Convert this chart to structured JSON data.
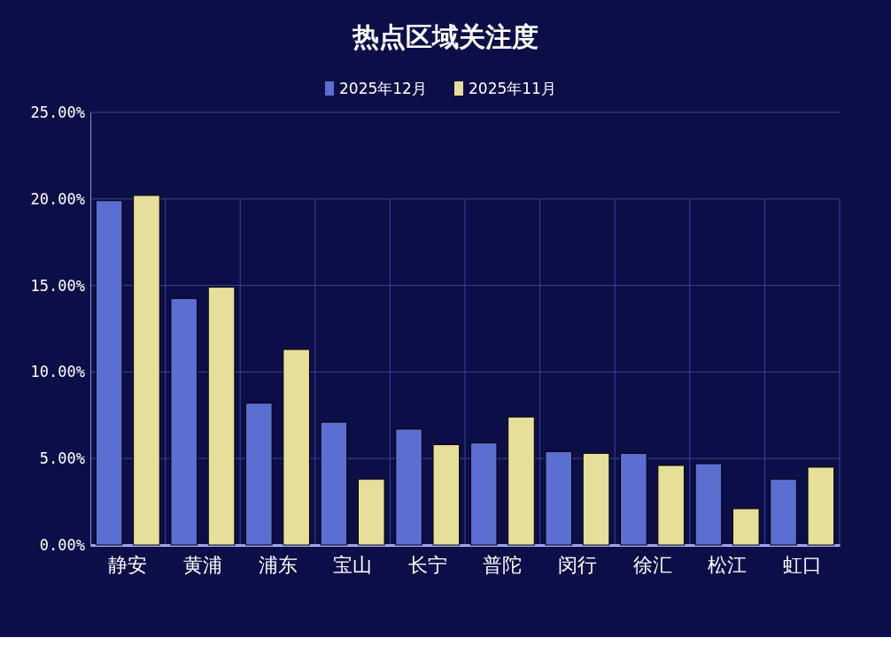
{
  "chart_data": {
    "type": "bar",
    "title": "热点区域关注度",
    "categories": [
      "静安",
      "黄浦",
      "浦东",
      "宝山",
      "长宁",
      "普陀",
      "闵行",
      "徐汇",
      "松江",
      "虹口"
    ],
    "series": [
      {
        "name": "2025年12月",
        "color": "#5b6fd2",
        "values": [
          19.9,
          14.25,
          8.2,
          7.1,
          6.7,
          5.9,
          5.4,
          5.3,
          4.7,
          3.8
        ]
      },
      {
        "name": "2025年11月",
        "color": "#e6df9a",
        "values": [
          20.2,
          14.9,
          11.3,
          3.8,
          5.8,
          7.4,
          5.3,
          4.6,
          2.1,
          4.5
        ]
      }
    ],
    "ylim": [
      0,
      25
    ],
    "yticks": [
      {
        "value": 0,
        "label": "0.00%"
      },
      {
        "value": 5,
        "label": "5.00%"
      },
      {
        "value": 10,
        "label": "10.00%"
      },
      {
        "value": 15,
        "label": "15.00%"
      },
      {
        "value": 20,
        "label": "20.00%"
      },
      {
        "value": 25,
        "label": "25.00%"
      }
    ],
    "grid": true,
    "legend": "top"
  }
}
